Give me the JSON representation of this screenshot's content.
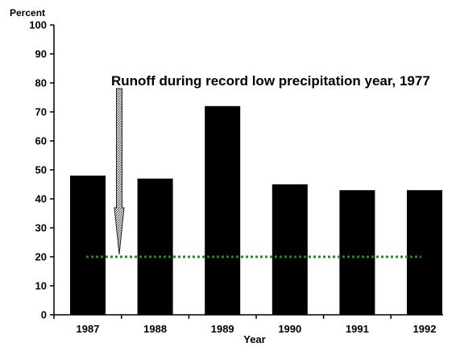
{
  "chart_data": {
    "type": "bar",
    "categories": [
      "1987",
      "1988",
      "1989",
      "1990",
      "1991",
      "1992"
    ],
    "values": [
      48,
      47,
      72,
      45,
      43,
      43
    ],
    "title": "",
    "xlabel": "Year",
    "ylabel": "Percent",
    "ylim": [
      0,
      100
    ],
    "yticks": [
      0,
      10,
      20,
      30,
      40,
      50,
      60,
      70,
      80,
      90,
      100
    ],
    "grid": false,
    "bar_color": "#000000",
    "reference_line": {
      "value": 20,
      "style": "dotted",
      "color": "#00a000"
    },
    "annotation": {
      "text": "Runoff during record low precipitation year, 1977",
      "arrow_points_to": 20,
      "arrow_style": "textured-gray"
    }
  }
}
